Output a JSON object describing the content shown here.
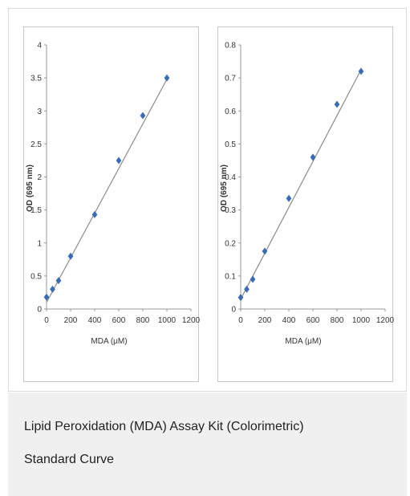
{
  "caption": {
    "line1": "Lipid Peroxidation (MDA) Assay Kit (Colorimetric)",
    "line2": "Standard Curve"
  },
  "colors": {
    "marker": "#3a6bb3",
    "fit_line": "#8c8c8c",
    "axis": "#999999"
  },
  "chart_data": [
    {
      "type": "scatter",
      "title": "",
      "xlabel": "MDA (μM)",
      "ylabel": "OD (695 nm)",
      "xlim": [
        0,
        1200
      ],
      "ylim": [
        0,
        4
      ],
      "x_ticks": [
        0,
        200,
        400,
        600,
        800,
        1000,
        1200
      ],
      "y_ticks": [
        0,
        0.5,
        1,
        1.5,
        2,
        2.5,
        3,
        3.5,
        4
      ],
      "x_tick_labels": [
        "0",
        "200",
        "400",
        "600",
        "800",
        "1000",
        "1200"
      ],
      "y_tick_labels": [
        "0",
        "0.5",
        "1",
        "1.5",
        "2",
        "2.5",
        "3",
        "3.5",
        "4"
      ],
      "trendline": {
        "x": [
          0,
          1000
        ],
        "y": [
          0.1,
          3.48
        ]
      },
      "series": [
        {
          "x": [
            0,
            50,
            100,
            200,
            400,
            600,
            800,
            1000
          ],
          "y": [
            0.18,
            0.3,
            0.43,
            0.8,
            1.43,
            2.25,
            2.93,
            3.5
          ]
        }
      ]
    },
    {
      "type": "scatter",
      "title": "",
      "xlabel": "MDA (μM)",
      "ylabel": "OD (695 nm)",
      "xlim": [
        0,
        1200
      ],
      "ylim": [
        0,
        0.8
      ],
      "x_ticks": [
        0,
        200,
        400,
        600,
        800,
        1000,
        1200
      ],
      "y_ticks": [
        0,
        0.1,
        0.2,
        0.3,
        0.4,
        0.5,
        0.6,
        0.7,
        0.8
      ],
      "x_tick_labels": [
        "0",
        "200",
        "400",
        "600",
        "800",
        "1000",
        "1200"
      ],
      "y_tick_labels": [
        "0",
        "0.1",
        "0.2",
        "0.3",
        "0.4",
        "0.5",
        "0.6",
        "0.7",
        "0.8"
      ],
      "trendline": {
        "x": [
          0,
          1000
        ],
        "y": [
          0.03,
          0.725
        ]
      },
      "series": [
        {
          "x": [
            0,
            50,
            100,
            200,
            400,
            600,
            800,
            1000
          ],
          "y": [
            0.035,
            0.06,
            0.09,
            0.175,
            0.335,
            0.46,
            0.62,
            0.72
          ]
        }
      ]
    }
  ]
}
